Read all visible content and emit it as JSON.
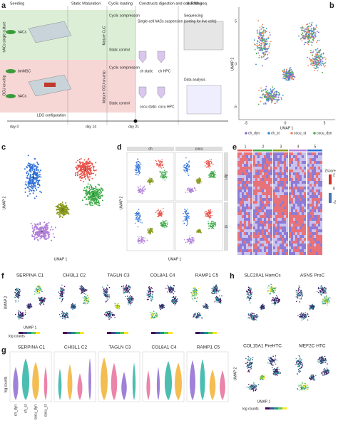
{
  "panel_a": {
    "letter": "a",
    "headers": [
      "Seeding",
      "Static Maturation",
      "Cyclic loading",
      "Constructs digestion and cell sorting",
      "scRNA-seq"
    ],
    "row_labels": [
      "hACs single culture",
      "OCU on-chip"
    ],
    "cells": [
      "hACs",
      "bmMSC",
      "hACs"
    ],
    "maturation": [
      "Mature CuC",
      "Mature OCU on-chip"
    ],
    "loading": [
      "Cyclic compression",
      "Static control",
      "Cyclic compression",
      "Static control"
    ],
    "timeline": [
      "day 0",
      "day 14",
      "day 21"
    ],
    "config": "LDG configuration",
    "sorting": "Single-cell hACs suspension (sorting for live cells)",
    "tubes": [
      "ch static",
      "ch HPC",
      "cocu static",
      "cocu HPC"
    ],
    "seq": [
      "Sequencing",
      "Data analysis"
    ]
  },
  "panel_b": {
    "letter": "b",
    "x_label": "UMAP 1",
    "y_label": "UMAP 2",
    "xticks": [
      "-5",
      "0",
      "5"
    ],
    "yticks": [
      "5",
      "0",
      "-5"
    ],
    "legend": [
      {
        "name": "ch_dyn",
        "color": "#8e6bd1"
      },
      {
        "name": "ch_st",
        "color": "#2f8ed1"
      },
      {
        "name": "cocu_st",
        "color": "#f08a5d"
      },
      {
        "name": "cocu_dyn",
        "color": "#4caf50"
      }
    ]
  },
  "panel_c": {
    "letter": "c",
    "x_label": "UMAP 1",
    "y_label": "UMAP 2",
    "clusters": [
      "1",
      "2",
      "3",
      "4",
      "5"
    ],
    "colors": [
      "#e8534a",
      "#3aa845",
      "#8a9a1e",
      "#b07fd8",
      "#2c6fd6"
    ]
  },
  "panel_d": {
    "letter": "d",
    "x_label": "UMAP 1",
    "y_label": "UMAP 2",
    "columns": [
      "ch",
      "cocu"
    ],
    "rows": [
      "dyn",
      "st"
    ]
  },
  "panel_e": {
    "letter": "e",
    "clusters": [
      "1",
      "2",
      "3",
      "4",
      "5"
    ],
    "legend": "Zscore",
    "ticks": [
      "2",
      "0",
      "-2"
    ]
  },
  "panel_f": {
    "letter": "f",
    "genes": [
      "SERPINA C1",
      "CHI3L1 C2",
      "TAGLN C3",
      "COL8A1 C4",
      "RAMP1 C5"
    ],
    "x_label": "UMAP 1",
    "y_label": "UMAP 2",
    "color_label": "log counts"
  },
  "panel_h": {
    "letter": "h",
    "genes": [
      "SLC20A1 HomCs",
      "ASNS ProC",
      "COL15A1 PreHTC",
      "MEF2C HTC"
    ],
    "x_label": "UMAP 1",
    "y_label": "UMAP 2",
    "color_label": "log counts"
  },
  "panel_g": {
    "letter": "g",
    "genes": [
      "SERPINA C1",
      "CHI3L1 C2",
      "TAGLN C3",
      "COL8A1 C4",
      "RAMP1 C5"
    ],
    "y_label": "log counts",
    "groups": [
      "ch_dyn",
      "ch_st",
      "cocu_dyn",
      "cocu_st"
    ]
  }
}
